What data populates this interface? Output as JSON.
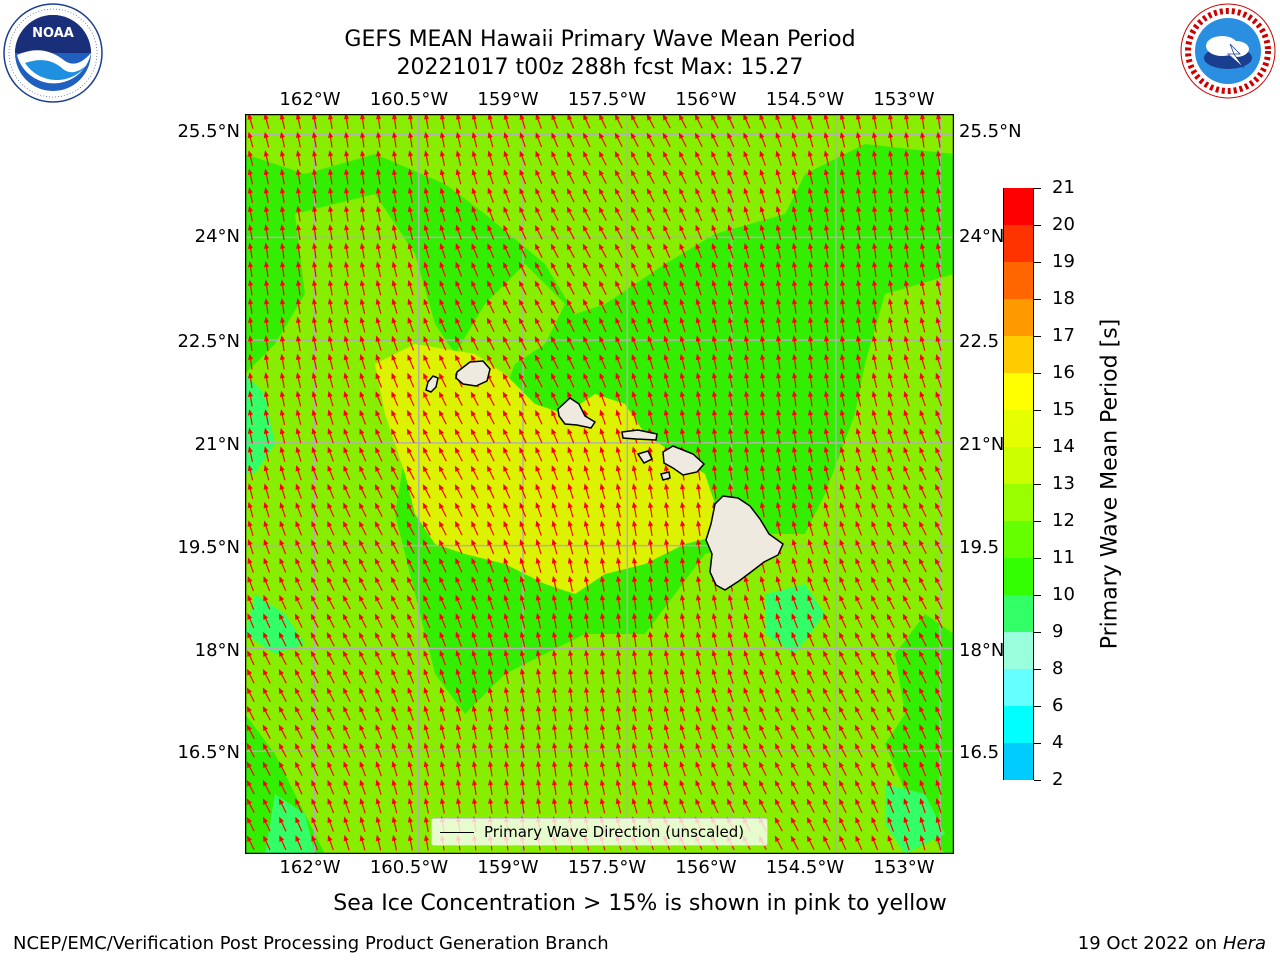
{
  "header": {
    "title_line1": "GEFS MEAN Hawaii Primary Wave Mean Period",
    "title_line2": "20221017 t00z 288h fcst   Max: 15.27"
  },
  "logos": {
    "left": {
      "name": "NOAA",
      "ring_text": "NATIONAL OCEANIC AND ATMOSPHERIC ADMINISTRATION · U.S. DEPARTMENT OF COMMERCE"
    },
    "right": {
      "name": "NATIONAL WEATHER SERVICE"
    }
  },
  "map": {
    "lon_labels": [
      "162°W",
      "160.5°W",
      "159°W",
      "157.5°W",
      "156°W",
      "154.5°W",
      "153°W"
    ],
    "lat_labels": [
      "25.5°N",
      "24°N",
      "22.5°N",
      "21°N",
      "19.5°N",
      "18°N",
      "16.5°N"
    ],
    "lat_labels_right": [
      "25.5°N",
      "24°N",
      "22.5",
      "21°N",
      "19.5",
      "18°N",
      "16.5"
    ],
    "lon_range": [
      -163.0,
      -152.8
    ],
    "lat_range": [
      15.0,
      25.8
    ],
    "field": "Primary Wave Mean Period",
    "max_value": 15.27,
    "dominant_period_range_s": [
      11,
      14
    ],
    "wave_direction_heading": "north-northwest",
    "arrow_color": "#ff0000",
    "land_color": "#eeeae0",
    "grid": true
  },
  "legend": {
    "label": "Primary Wave Direction (unscaled)"
  },
  "colorbar": {
    "label": "Primary Wave Mean Period [s]",
    "ticks": [
      "21",
      "20",
      "19",
      "18",
      "17",
      "16",
      "15",
      "14",
      "13",
      "12",
      "11",
      "10",
      "9",
      "8",
      "6",
      "4",
      "2"
    ],
    "colors": [
      "#ff0000",
      "#ff3300",
      "#ff6600",
      "#ff9900",
      "#ffcc00",
      "#ffff00",
      "#e6ff00",
      "#ccff00",
      "#99ff00",
      "#66ff00",
      "#33ff00",
      "#33ff66",
      "#99ffdd",
      "#66ffff",
      "#00ffff",
      "#00ccff",
      "#0077ff",
      "#0000ff"
    ]
  },
  "caption": "Sea Ice Concentration > 15% is shown in pink to yellow",
  "footer": {
    "left": "NCEP/EMC/Verification Post Processing Product Generation Branch",
    "right_date": "19 Oct 2022 on ",
    "right_machine": "Hera"
  }
}
